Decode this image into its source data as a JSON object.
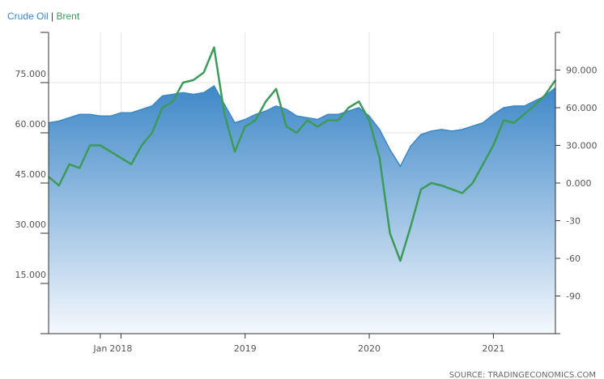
{
  "legend": {
    "series1": "Crude Oil",
    "separator": "|",
    "series2": "Brent"
  },
  "source": "SOURCE: TRADINGECONOMICS.COM",
  "colors": {
    "series1_line": "#3a87c7",
    "series1_fill_top": "#3f88c8",
    "series1_fill_bottom": "#f4f8fd",
    "series2_line": "#3c9b58",
    "grid": "#e6e6e6",
    "axis": "#333333"
  },
  "chart_data": {
    "type": "area",
    "grid": true,
    "legend_position": "top-left",
    "x_tick_labels": [
      "Jan",
      "2018",
      "2019",
      "2020",
      "2021"
    ],
    "left_axis": {
      "ticks": [
        15,
        30,
        45,
        60,
        75
      ],
      "tick_labels": [
        "15.000",
        "30.000",
        "45.000",
        "60.000",
        "75.000"
      ],
      "ylim": [
        0,
        90
      ]
    },
    "right_axis": {
      "ticks": [
        -90,
        -60,
        -30,
        0,
        30,
        60,
        90
      ],
      "tick_labels": [
        "-90",
        "-60",
        "-30",
        "0.000",
        "30.000",
        "60.000",
        "90.000"
      ],
      "ylim": [
        -120,
        120
      ]
    },
    "x_range": [
      "2017-06",
      "2021-07"
    ],
    "series": [
      {
        "name": "Crude Oil",
        "axis": "left",
        "points": [
          [
            "2017-06",
            63.0
          ],
          [
            "2017-07",
            63.5
          ],
          [
            "2017-08",
            64.5
          ],
          [
            "2017-09",
            65.5
          ],
          [
            "2017-10",
            65.5
          ],
          [
            "2017-11",
            65.0
          ],
          [
            "2017-12",
            65.0
          ],
          [
            "2018-01",
            66.0
          ],
          [
            "2018-02",
            66.0
          ],
          [
            "2018-03",
            67.0
          ],
          [
            "2018-04",
            68.0
          ],
          [
            "2018-05",
            71.0
          ],
          [
            "2018-06",
            71.5
          ],
          [
            "2018-07",
            72.0
          ],
          [
            "2018-08",
            71.5
          ],
          [
            "2018-09",
            72.0
          ],
          [
            "2018-10",
            74.0
          ],
          [
            "2018-11",
            68.5
          ],
          [
            "2018-12",
            63.0
          ],
          [
            "2019-01",
            64.0
          ],
          [
            "2019-02",
            65.5
          ],
          [
            "2019-03",
            66.5
          ],
          [
            "2019-04",
            68.0
          ],
          [
            "2019-05",
            67.0
          ],
          [
            "2019-06",
            65.0
          ],
          [
            "2019-07",
            64.5
          ],
          [
            "2019-08",
            64.0
          ],
          [
            "2019-09",
            65.5
          ],
          [
            "2019-10",
            65.5
          ],
          [
            "2019-11",
            66.5
          ],
          [
            "2019-12",
            67.5
          ],
          [
            "2020-01",
            65.0
          ],
          [
            "2020-02",
            61.0
          ],
          [
            "2020-03",
            55.0
          ],
          [
            "2020-04",
            50.0
          ],
          [
            "2020-05",
            56.0
          ],
          [
            "2020-06",
            59.5
          ],
          [
            "2020-07",
            60.5
          ],
          [
            "2020-08",
            61.0
          ],
          [
            "2020-09",
            60.5
          ],
          [
            "2020-10",
            61.0
          ],
          [
            "2020-11",
            62.0
          ],
          [
            "2020-12",
            63.0
          ],
          [
            "2021-01",
            65.5
          ],
          [
            "2021-02",
            67.5
          ],
          [
            "2021-03",
            68.0
          ],
          [
            "2021-04",
            68.0
          ],
          [
            "2021-05",
            69.5
          ],
          [
            "2021-06",
            71.0
          ],
          [
            "2021-07",
            73.5
          ]
        ]
      },
      {
        "name": "Brent",
        "axis": "right",
        "points": [
          [
            "2017-06",
            5
          ],
          [
            "2017-07",
            -2
          ],
          [
            "2017-08",
            15
          ],
          [
            "2017-09",
            12
          ],
          [
            "2017-10",
            30
          ],
          [
            "2017-11",
            30
          ],
          [
            "2017-12",
            25
          ],
          [
            "2018-01",
            20
          ],
          [
            "2018-02",
            15
          ],
          [
            "2018-03",
            30
          ],
          [
            "2018-04",
            40
          ],
          [
            "2018-05",
            60
          ],
          [
            "2018-06",
            65
          ],
          [
            "2018-07",
            80
          ],
          [
            "2018-08",
            82
          ],
          [
            "2018-09",
            88
          ],
          [
            "2018-10",
            108
          ],
          [
            "2018-11",
            55
          ],
          [
            "2018-12",
            25
          ],
          [
            "2019-01",
            45
          ],
          [
            "2019-02",
            50
          ],
          [
            "2019-03",
            65
          ],
          [
            "2019-04",
            75
          ],
          [
            "2019-05",
            45
          ],
          [
            "2019-06",
            40
          ],
          [
            "2019-07",
            50
          ],
          [
            "2019-08",
            45
          ],
          [
            "2019-09",
            50
          ],
          [
            "2019-10",
            50
          ],
          [
            "2019-11",
            60
          ],
          [
            "2019-12",
            65
          ],
          [
            "2020-01",
            50
          ],
          [
            "2020-02",
            20
          ],
          [
            "2020-03",
            -40
          ],
          [
            "2020-04",
            -62
          ],
          [
            "2020-05",
            -35
          ],
          [
            "2020-06",
            -5
          ],
          [
            "2020-07",
            0
          ],
          [
            "2020-08",
            -2
          ],
          [
            "2020-09",
            -5
          ],
          [
            "2020-10",
            -8
          ],
          [
            "2020-11",
            0
          ],
          [
            "2020-12",
            15
          ],
          [
            "2021-01",
            30
          ],
          [
            "2021-02",
            50
          ],
          [
            "2021-03",
            48
          ],
          [
            "2021-04",
            55
          ],
          [
            "2021-05",
            62
          ],
          [
            "2021-06",
            70
          ],
          [
            "2021-07",
            82
          ]
        ]
      }
    ]
  }
}
